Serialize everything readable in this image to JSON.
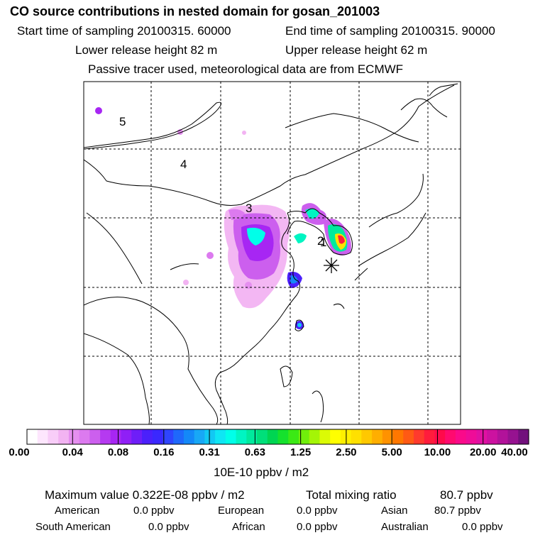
{
  "title": "CO  source contributions in nested domain for gosan_201003",
  "start_label": "Start time of sampling 20100315. 60000",
  "end_label": "End time of sampling 20100315. 90000",
  "lower_release": "Lower release height   82 m",
  "upper_release": "Upper release height   62 m",
  "tracer_note": "Passive tracer used, meteorological data are from ECMWF",
  "region_markers": [
    "5",
    "4",
    "3",
    "2",
    "1"
  ],
  "colorbar": {
    "tick_labels": [
      "0.00",
      "0.04",
      "0.08",
      "0.16",
      "0.31",
      "0.63",
      "1.25",
      "2.50",
      "5.00",
      "10.00",
      "20.00",
      "40.00"
    ],
    "unit": "10E-10 ppbv / m2",
    "colors": [
      "#ffffff",
      "#fde6fd",
      "#f8cdf8",
      "#f2b3f2",
      "#e58fef",
      "#dc7aef",
      "#cc5fee",
      "#b53af0",
      "#a726f3",
      "#8f1ff6",
      "#6e1ef8",
      "#4b20fb",
      "#3a28fe",
      "#2f45fe",
      "#1f68fb",
      "#1488f8",
      "#18a8f6",
      "#12c8f3",
      "#0fe6f4",
      "#00ffe9",
      "#00f5c2",
      "#00ea9d",
      "#00df7a",
      "#00d552",
      "#15e12d",
      "#3be915",
      "#70ef0b",
      "#a4f506",
      "#dbfb05",
      "#ffff00",
      "#fff000",
      "#ffe000",
      "#ffc800",
      "#ffae00",
      "#ff9200",
      "#ff7700",
      "#ff5a14",
      "#ff3a2d",
      "#ff1c3c",
      "#ff0a4b",
      "#ff0a6f",
      "#fa0a8a",
      "#ef0c98",
      "#e010a2",
      "#cc12a0",
      "#b2129a",
      "#961290",
      "#72107c"
    ]
  },
  "chart_data": {
    "type": "heatmap",
    "title": "CO  source contributions in nested domain for gosan_201003",
    "unit": "10E-10 ppbv / m2",
    "color_scale_boundaries": [
      0.0,
      0.04,
      0.08,
      0.16,
      0.31,
      0.63,
      1.25,
      2.5,
      5.0,
      10.0,
      20.0,
      40.0
    ],
    "summary": {
      "maximum_value": "Maximum value  0.322E-08 ppbv / m2",
      "total_mixing_ratio_label": "Total mixing ratio",
      "total_mixing_ratio_value": "80.7 ppbv"
    },
    "sources": [
      {
        "label": "American",
        "value": "0.0 ppbv"
      },
      {
        "label": "European",
        "value": "0.0 ppbv"
      },
      {
        "label": "Asian",
        "value": "80.7 ppbv"
      },
      {
        "label": "South American",
        "value": "0.0 ppbv"
      },
      {
        "label": "African",
        "value": "0.0 ppbv"
      },
      {
        "label": "Australian",
        "value": "0.0 ppbv"
      }
    ],
    "receptor": "gosan",
    "receptor_marker": "asterisk"
  }
}
